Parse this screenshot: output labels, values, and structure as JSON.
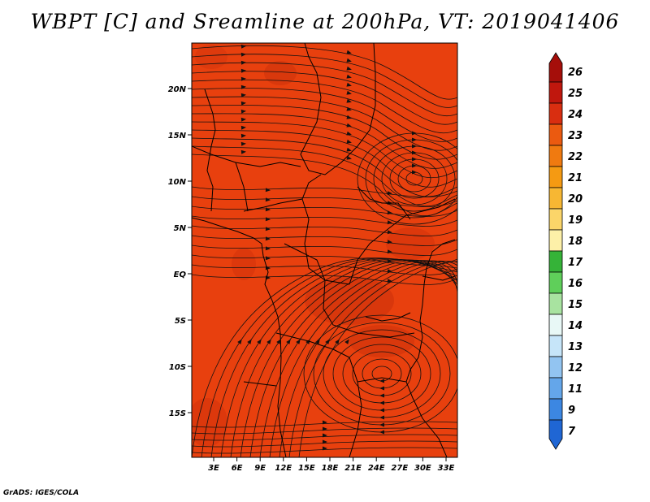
{
  "title": "WBPT [C] and Sreamline at 200hPa, VT: 2019041406",
  "credit": "GrADS: IGES/COLA",
  "map": {
    "fill_color": "#e8400e",
    "patch_color": "#d3340c",
    "lat_labels": [
      "20N",
      "15N",
      "10N",
      "5N",
      "EQ",
      "5S",
      "10S",
      "15S"
    ],
    "lon_labels": [
      "3E",
      "6E",
      "9E",
      "12E",
      "15E",
      "18E",
      "21E",
      "24E",
      "27E",
      "30E",
      "33E"
    ]
  },
  "colorbar": {
    "labels": [
      "26",
      "25",
      "24",
      "23",
      "22",
      "21",
      "20",
      "19",
      "18",
      "17",
      "16",
      "15",
      "14",
      "13",
      "12",
      "11",
      "9",
      "7"
    ],
    "colors": [
      "#a50e0a",
      "#c0170d",
      "#d92e10",
      "#eb5a10",
      "#f07a10",
      "#f59a12",
      "#f7b733",
      "#fbd569",
      "#fdf0a8",
      "#35b338",
      "#5fcf5a",
      "#a8e3a0",
      "#e8f8f6",
      "#c6e5f9",
      "#92c4f1",
      "#64a6ea",
      "#3c87e2",
      "#1f66d4"
    ]
  }
}
